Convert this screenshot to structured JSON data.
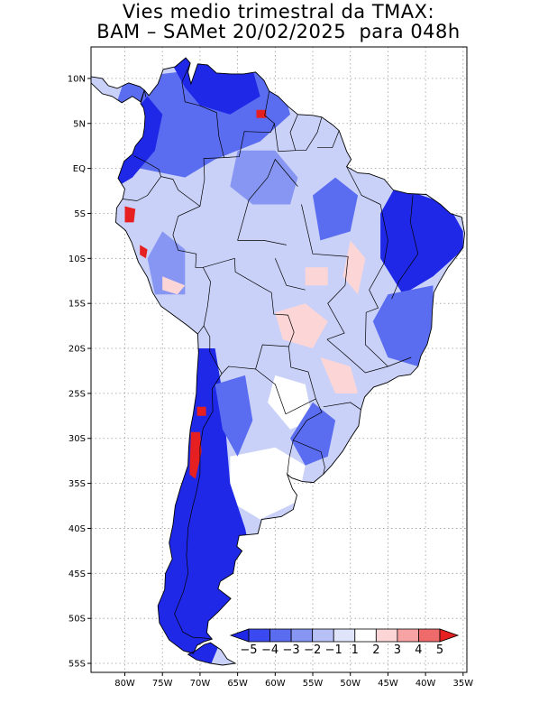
{
  "title": {
    "line1": "Vies medio trimestral da TMAX:",
    "line2": "BAM – SAMet 20/02/2025  para 048h"
  },
  "map": {
    "lon_range": [
      -84.5,
      -34.5
    ],
    "lat_range": [
      -56,
      13.5
    ],
    "grid": "dotted",
    "x_ticks": [
      {
        "lon": -80,
        "label": "80W"
      },
      {
        "lon": -75,
        "label": "75W"
      },
      {
        "lon": -70,
        "label": "70W"
      },
      {
        "lon": -65,
        "label": "65W"
      },
      {
        "lon": -60,
        "label": "60W"
      },
      {
        "lon": -55,
        "label": "55W"
      },
      {
        "lon": -50,
        "label": "50W"
      },
      {
        "lon": -45,
        "label": "45W"
      },
      {
        "lon": -40,
        "label": "40W"
      },
      {
        "lon": -35,
        "label": "35W"
      }
    ],
    "y_ticks": [
      {
        "lat": 10,
        "label": "10N"
      },
      {
        "lat": 5,
        "label": "5N"
      },
      {
        "lat": 0,
        "label": "EQ"
      },
      {
        "lat": -5,
        "label": "5S"
      },
      {
        "lat": -10,
        "label": "10S"
      },
      {
        "lat": -15,
        "label": "15S"
      },
      {
        "lat": -20,
        "label": "20S"
      },
      {
        "lat": -25,
        "label": "25S"
      },
      {
        "lat": -30,
        "label": "30S"
      },
      {
        "lat": -35,
        "label": "35S"
      },
      {
        "lat": -40,
        "label": "40S"
      },
      {
        "lat": -45,
        "label": "45S"
      },
      {
        "lat": -50,
        "label": "50S"
      },
      {
        "lat": -55,
        "label": "55S"
      }
    ]
  },
  "colorbar": {
    "labels": [
      "−5",
      "−4",
      "−3",
      "−2",
      "−1",
      "1",
      "2",
      "3",
      "4",
      "5"
    ],
    "colors": [
      "#1e28e6",
      "#3a4af0",
      "#5a6cf0",
      "#8696f2",
      "#b7c1f6",
      "#dfe4fb",
      "#ffffff",
      "#fcd6d6",
      "#f7a3a3",
      "#ef6a6a",
      "#e62020"
    ]
  },
  "colors": {
    "land_base": "#c9d1f8",
    "strong_cold": "#1e28e6",
    "moderate_cold": "#5a6cf0",
    "weak_cold": "#8696f2",
    "neutral": "#ffffff",
    "weak_warm": "#fcd6d6",
    "strong_warm": "#e62020",
    "borders": "#000000"
  }
}
